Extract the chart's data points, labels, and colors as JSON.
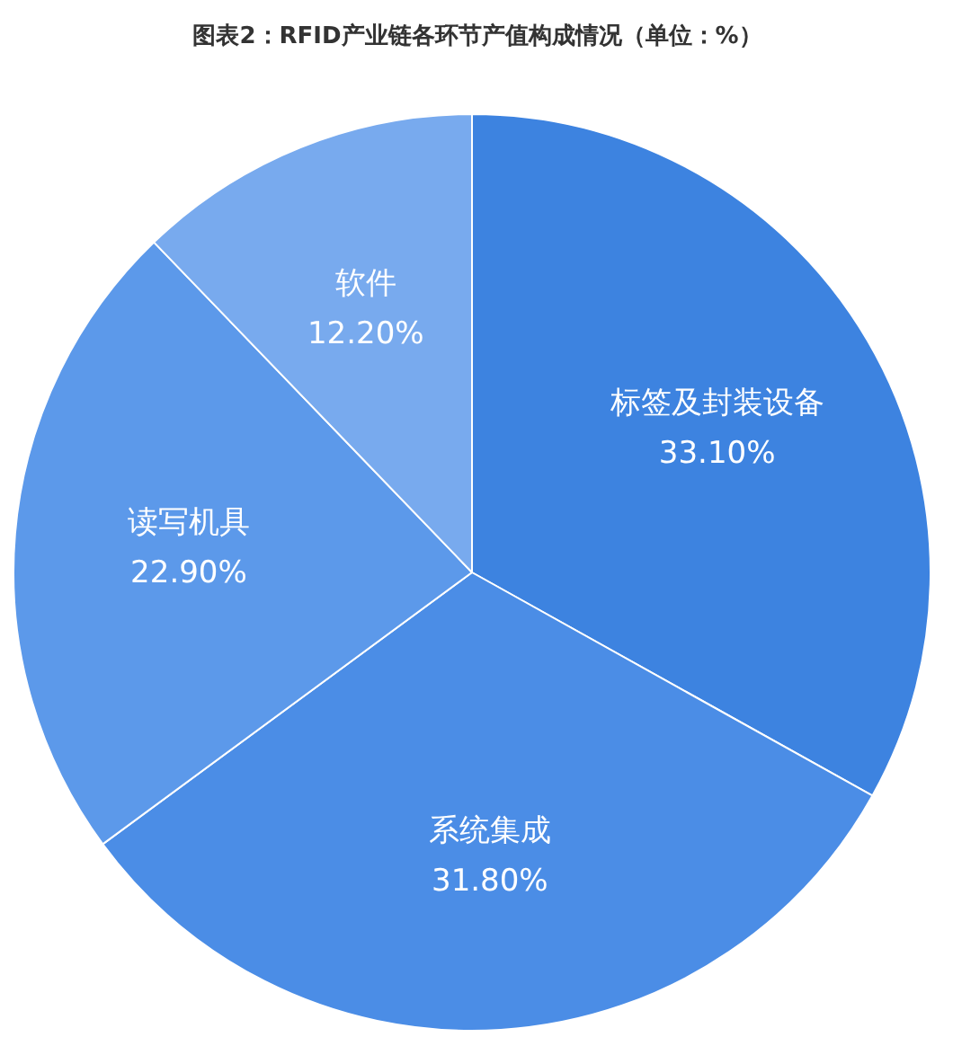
{
  "chart_data": {
    "type": "pie",
    "title": "图表2：RFID产业链各环节产值构成情况（单位：%）",
    "categories": [
      "标签及封装设备",
      "系统集成",
      "读写机具",
      "软件"
    ],
    "values": [
      33.1,
      31.8,
      22.9,
      12.2
    ],
    "value_labels": [
      "33.10%",
      "31.80%",
      "22.90%",
      "12.20%"
    ],
    "colors": [
      "#3d83e0",
      "#4b8de6",
      "#5c99ea",
      "#78aaee"
    ]
  }
}
